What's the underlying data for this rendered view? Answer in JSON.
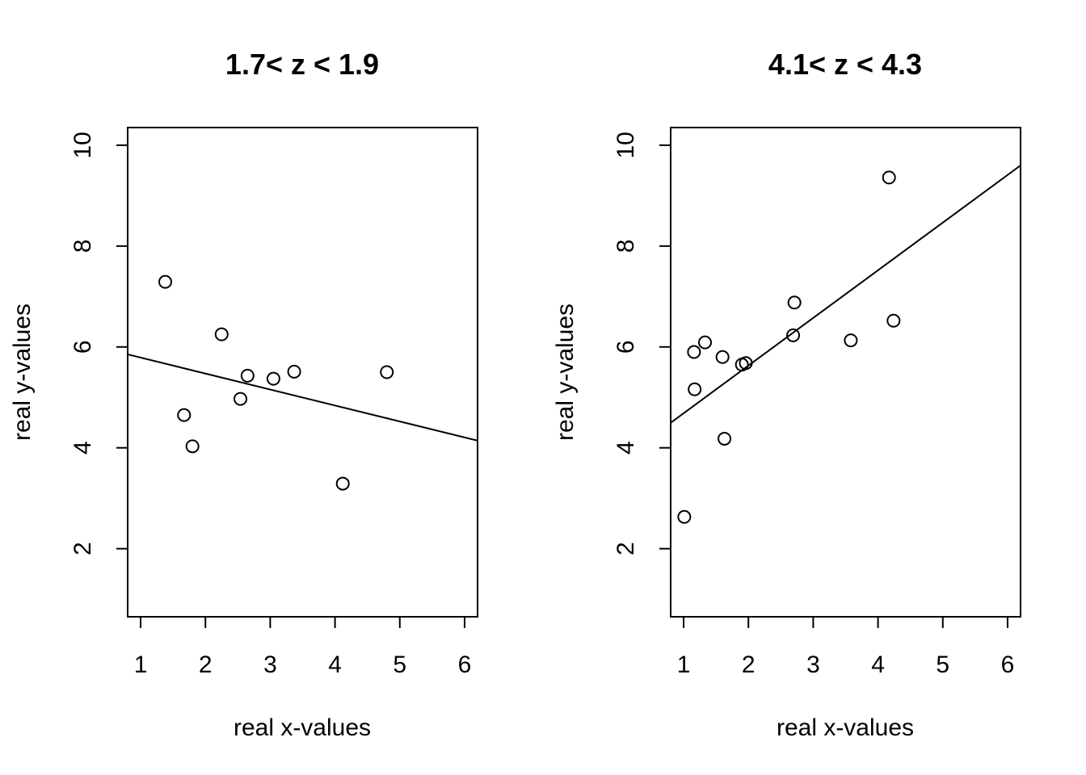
{
  "chart_data": [
    {
      "type": "scatter",
      "title": "1.7< z < 1.9",
      "xlabel": "real x-values",
      "ylabel": "real y-values",
      "xlim": [
        0.8,
        6.2
      ],
      "ylim": [
        0.65,
        10.35
      ],
      "xticks": [
        1,
        2,
        3,
        4,
        5,
        6
      ],
      "yticks": [
        2,
        4,
        6,
        8,
        10
      ],
      "grid": false,
      "points": [
        {
          "x": 1.38,
          "y": 7.29
        },
        {
          "x": 1.67,
          "y": 4.65
        },
        {
          "x": 1.8,
          "y": 4.03
        },
        {
          "x": 2.25,
          "y": 6.25
        },
        {
          "x": 2.54,
          "y": 4.97
        },
        {
          "x": 2.65,
          "y": 5.43
        },
        {
          "x": 3.05,
          "y": 5.37
        },
        {
          "x": 3.37,
          "y": 5.51
        },
        {
          "x": 4.12,
          "y": 3.29
        },
        {
          "x": 4.8,
          "y": 5.5
        }
      ],
      "fit_line": {
        "intercept": 6.105,
        "slope": -0.3165
      }
    },
    {
      "type": "scatter",
      "title": "4.1< z < 4.3",
      "xlabel": "real x-values",
      "ylabel": "real y-values",
      "xlim": [
        0.8,
        6.2
      ],
      "ylim": [
        0.65,
        10.35
      ],
      "xticks": [
        1,
        2,
        3,
        4,
        5,
        6
      ],
      "yticks": [
        2,
        4,
        6,
        8,
        10
      ],
      "grid": false,
      "points": [
        {
          "x": 1.01,
          "y": 2.63
        },
        {
          "x": 1.16,
          "y": 5.9
        },
        {
          "x": 1.17,
          "y": 5.16
        },
        {
          "x": 1.33,
          "y": 6.09
        },
        {
          "x": 1.6,
          "y": 5.8
        },
        {
          "x": 1.63,
          "y": 4.18
        },
        {
          "x": 1.9,
          "y": 5.65
        },
        {
          "x": 1.96,
          "y": 5.68
        },
        {
          "x": 2.69,
          "y": 6.23
        },
        {
          "x": 2.71,
          "y": 6.88
        },
        {
          "x": 3.58,
          "y": 6.13
        },
        {
          "x": 4.17,
          "y": 9.36
        },
        {
          "x": 4.24,
          "y": 6.52
        }
      ],
      "fit_line": {
        "intercept": 3.74,
        "slope": 0.945
      }
    }
  ]
}
